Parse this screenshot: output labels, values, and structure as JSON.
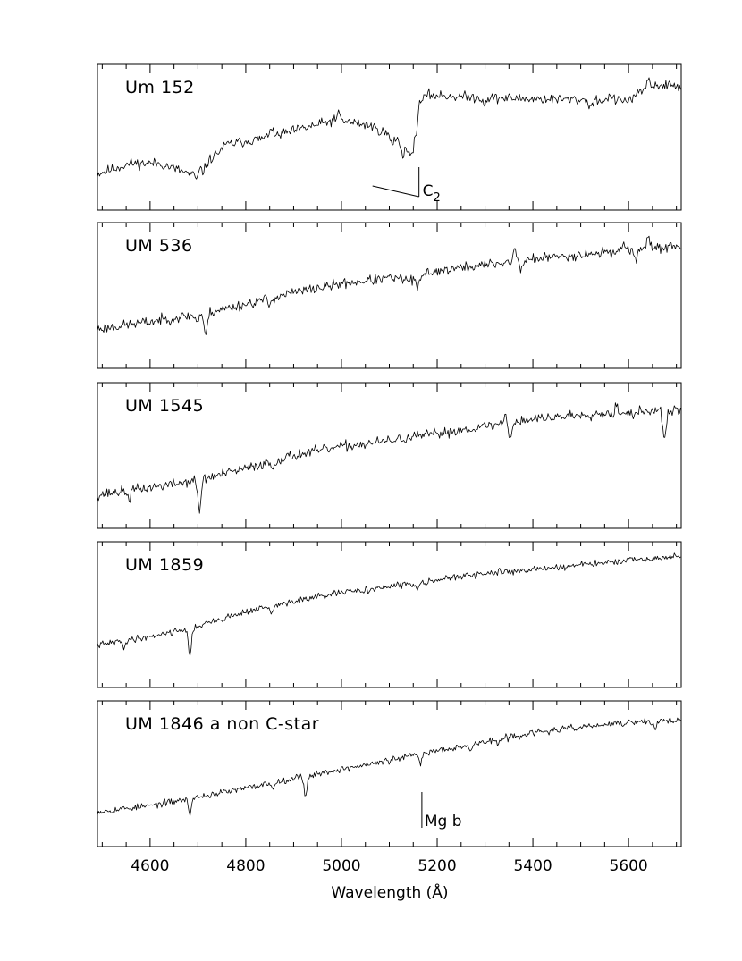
{
  "chart_data": {
    "type": "line",
    "xlabel": "Wavelength (Å)",
    "xlim": [
      4490,
      5710
    ],
    "x_ticks": [
      4600,
      4800,
      5000,
      5200,
      5400,
      5600
    ],
    "x_tick_labels": [
      "4600",
      "4800",
      "5000",
      "5200",
      "5400",
      "5600"
    ],
    "minor_tick_step": 50,
    "grid": false,
    "legend": "none",
    "panels": [
      {
        "label": "Um 152",
        "ylim": [
          0,
          1
        ],
        "continuum": [
          [
            4490,
            0.25
          ],
          [
            4560,
            0.32
          ],
          [
            4620,
            0.32
          ],
          [
            4690,
            0.24
          ],
          [
            4720,
            0.33
          ],
          [
            4760,
            0.45
          ],
          [
            4850,
            0.5
          ],
          [
            4920,
            0.56
          ],
          [
            4990,
            0.62
          ],
          [
            5060,
            0.58
          ],
          [
            5110,
            0.5
          ],
          [
            5140,
            0.42
          ],
          [
            5155,
            0.48
          ],
          [
            5162,
            0.73
          ],
          [
            5180,
            0.79
          ],
          [
            5300,
            0.77
          ],
          [
            5450,
            0.76
          ],
          [
            5600,
            0.75
          ],
          [
            5650,
            0.86
          ],
          [
            5710,
            0.85
          ]
        ],
        "noise": 0.022,
        "seed": 11,
        "dips": [
          [
            4698,
            0.05
          ],
          [
            4712,
            0.04
          ],
          [
            5105,
            0.06
          ],
          [
            5128,
            0.07
          ],
          [
            5145,
            0.07
          ],
          [
            5298,
            0.04
          ],
          [
            5520,
            0.05
          ]
        ],
        "spikes": [
          [
            4852,
            0.08
          ],
          [
            4995,
            0.05
          ],
          [
            5563,
            0.05
          ],
          [
            5640,
            0.06
          ]
        ],
        "annotation": {
          "text": "C",
          "subscript": "2",
          "x": 5162
        }
      },
      {
        "label": "UM 536",
        "ylim": [
          0,
          1
        ],
        "continuum": [
          [
            4490,
            0.27
          ],
          [
            4600,
            0.32
          ],
          [
            4700,
            0.37
          ],
          [
            4800,
            0.44
          ],
          [
            4900,
            0.52
          ],
          [
            5000,
            0.58
          ],
          [
            5100,
            0.62
          ],
          [
            5160,
            0.6
          ],
          [
            5180,
            0.66
          ],
          [
            5300,
            0.71
          ],
          [
            5400,
            0.75
          ],
          [
            5500,
            0.78
          ],
          [
            5600,
            0.81
          ],
          [
            5710,
            0.84
          ]
        ],
        "noise": 0.022,
        "seed": 23,
        "dips": [
          [
            4716,
            0.17
          ],
          [
            4698,
            0.05
          ],
          [
            4850,
            0.05
          ],
          [
            5160,
            0.05
          ],
          [
            5375,
            0.06
          ],
          [
            5615,
            0.06
          ]
        ],
        "spikes": [
          [
            5362,
            0.09
          ],
          [
            5590,
            0.07
          ],
          [
            5640,
            0.07
          ]
        ],
        "annotation": null
      },
      {
        "label": "UM 1545",
        "ylim": [
          0,
          1
        ],
        "continuum": [
          [
            4490,
            0.23
          ],
          [
            4600,
            0.28
          ],
          [
            4700,
            0.33
          ],
          [
            4800,
            0.41
          ],
          [
            4900,
            0.5
          ],
          [
            5000,
            0.56
          ],
          [
            5100,
            0.6
          ],
          [
            5200,
            0.65
          ],
          [
            5300,
            0.7
          ],
          [
            5400,
            0.75
          ],
          [
            5500,
            0.78
          ],
          [
            5600,
            0.8
          ],
          [
            5710,
            0.81
          ]
        ],
        "noise": 0.022,
        "seed": 37,
        "dips": [
          [
            4703,
            0.22
          ],
          [
            4556,
            0.06
          ],
          [
            4856,
            0.05
          ],
          [
            5352,
            0.11
          ],
          [
            5675,
            0.22
          ],
          [
            5610,
            0.05
          ]
        ],
        "spikes": [
          [
            5342,
            0.06
          ],
          [
            5575,
            0.05
          ]
        ],
        "annotation": null
      },
      {
        "label": "UM 1859",
        "ylim": [
          0,
          1
        ],
        "continuum": [
          [
            4490,
            0.29
          ],
          [
            4600,
            0.35
          ],
          [
            4700,
            0.42
          ],
          [
            4800,
            0.52
          ],
          [
            4900,
            0.59
          ],
          [
            5000,
            0.65
          ],
          [
            5100,
            0.69
          ],
          [
            5200,
            0.74
          ],
          [
            5300,
            0.78
          ],
          [
            5400,
            0.81
          ],
          [
            5500,
            0.84
          ],
          [
            5600,
            0.87
          ],
          [
            5710,
            0.9
          ]
        ],
        "noise": 0.014,
        "seed": 41,
        "dips": [
          [
            4683,
            0.2
          ],
          [
            4855,
            0.06
          ],
          [
            5158,
            0.05
          ],
          [
            4545,
            0.04
          ]
        ],
        "spikes": [],
        "annotation": null
      },
      {
        "label": "UM 1846 a non C-star",
        "ylim": [
          0,
          1
        ],
        "continuum": [
          [
            4490,
            0.24
          ],
          [
            4600,
            0.28
          ],
          [
            4700,
            0.34
          ],
          [
            4800,
            0.4
          ],
          [
            4900,
            0.47
          ],
          [
            5000,
            0.53
          ],
          [
            5100,
            0.59
          ],
          [
            5200,
            0.66
          ],
          [
            5300,
            0.72
          ],
          [
            5400,
            0.78
          ],
          [
            5500,
            0.82
          ],
          [
            5600,
            0.85
          ],
          [
            5710,
            0.87
          ]
        ],
        "noise": 0.014,
        "seed": 53,
        "dips": [
          [
            4683,
            0.1
          ],
          [
            4925,
            0.13
          ],
          [
            4858,
            0.04
          ],
          [
            5165,
            0.06
          ],
          [
            5270,
            0.05
          ],
          [
            5328,
            0.04
          ],
          [
            5655,
            0.05
          ]
        ],
        "spikes": [],
        "annotation": {
          "text": "Mg b",
          "x": 5168
        }
      }
    ]
  }
}
